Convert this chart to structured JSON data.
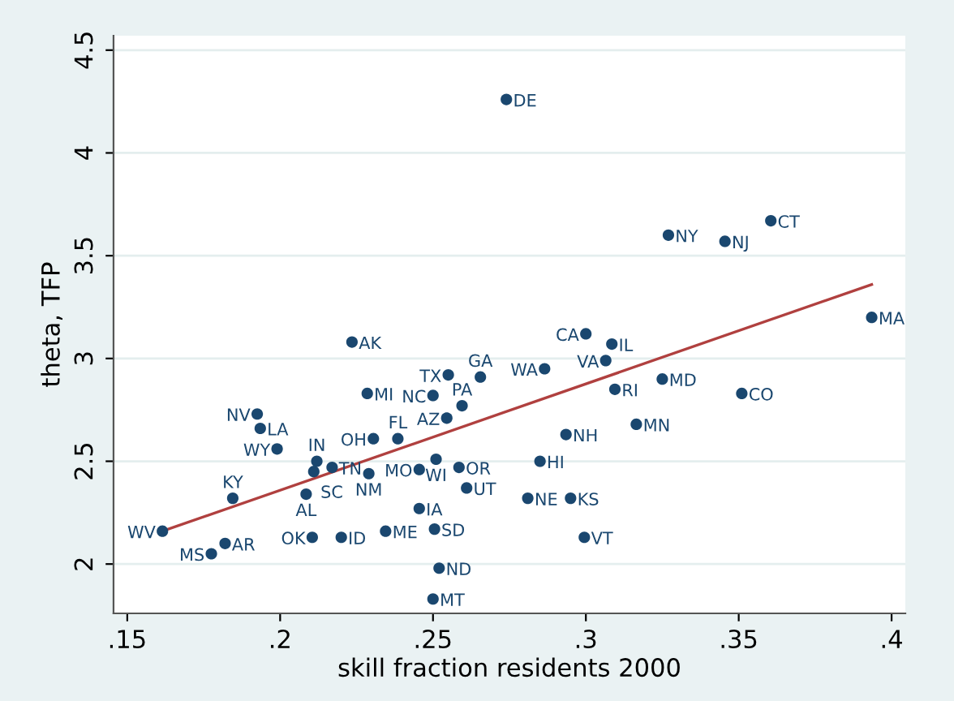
{
  "chart_data": {
    "type": "scatter",
    "xlabel": "skill fraction residents 2000",
    "ylabel": "theta, TFP",
    "xlim": [
      0.1455,
      0.4045
    ],
    "ylim": [
      1.76,
      4.57
    ],
    "xticks": [
      {
        "value": 0.15,
        "label": ".15"
      },
      {
        "value": 0.2,
        "label": ".2"
      },
      {
        "value": 0.25,
        "label": ".25"
      },
      {
        "value": 0.3,
        "label": ".3"
      },
      {
        "value": 0.35,
        "label": ".35"
      },
      {
        "value": 0.4,
        "label": ".4"
      }
    ],
    "yticks": [
      2,
      2.5,
      3,
      3.5,
      4,
      4.5
    ],
    "grid": "y",
    "marker": "circle",
    "series": [
      {
        "type": "scatter",
        "color": "#1a476f",
        "x": [
          0.274,
          0.327,
          0.3455,
          0.3605,
          0.3935,
          0.3,
          0.3085,
          0.3065,
          0.325,
          0.351,
          0.3095,
          0.3165,
          0.2865,
          0.2935,
          0.285,
          0.281,
          0.295,
          0.2995,
          0.2235,
          0.255,
          0.2655,
          0.2285,
          0.25,
          0.2595,
          0.2545,
          0.2305,
          0.2385,
          0.251,
          0.2455,
          0.2585,
          0.261,
          0.2455,
          0.2505,
          0.2345,
          0.22,
          0.2105,
          0.252,
          0.25,
          0.229,
          0.212,
          0.211,
          0.217,
          0.1925,
          0.1935,
          0.199,
          0.1845,
          0.2085,
          0.1615,
          0.182,
          0.1775
        ],
        "values": [
          4.26,
          3.6,
          3.57,
          3.67,
          3.2,
          3.12,
          3.07,
          2.99,
          2.9,
          2.83,
          2.85,
          2.68,
          2.95,
          2.63,
          2.5,
          2.32,
          2.32,
          2.13,
          3.08,
          2.92,
          2.91,
          2.83,
          2.82,
          2.77,
          2.71,
          2.61,
          2.61,
          2.51,
          2.46,
          2.47,
          2.37,
          2.27,
          2.17,
          2.16,
          2.13,
          2.13,
          1.98,
          1.83,
          2.44,
          2.5,
          2.45,
          2.47,
          2.73,
          2.66,
          2.56,
          2.32,
          2.34,
          2.16,
          2.1,
          2.05
        ],
        "value_labels": [
          "DE",
          "NY",
          "NJ",
          "CT",
          "MA",
          "CA",
          "IL",
          "VA",
          "MD",
          "CO",
          "RI",
          "MN",
          "WA",
          "NH",
          "HI",
          "NE",
          "KS",
          "VT",
          "AK",
          "TX",
          "GA",
          "MI",
          "NC",
          "PA",
          "AZ",
          "OH",
          "FL",
          "WI",
          "MO",
          "OR",
          "UT",
          "IA",
          "SD",
          "ME",
          "ID",
          "OK",
          "ND",
          "MT",
          "NM",
          "IN",
          "SC",
          "TN",
          "NV",
          "LA",
          "WY",
          "KY",
          "AL",
          "WV",
          "AR",
          "MS"
        ]
      },
      {
        "type": "line",
        "color": "#b0403f",
        "x": [
          0.1615,
          0.3935
        ],
        "values": [
          2.16,
          3.36
        ],
        "line_style": "solid",
        "marker": "none"
      }
    ]
  }
}
